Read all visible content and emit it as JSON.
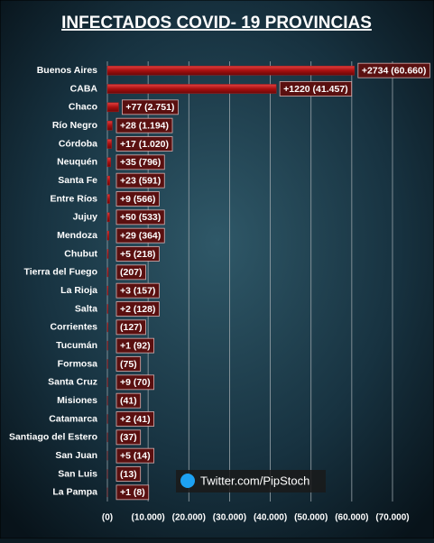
{
  "chart_data": {
    "type": "hbar",
    "title": "INFECTADOS COVID- 19  PROVINCIAS",
    "categories": [
      "Buenos Aires",
      "CABA",
      "Chaco",
      "Río Negro",
      "Córdoba",
      "Neuquén",
      "Santa Fe",
      "Entre Ríos",
      "Jujuy",
      "Mendoza",
      "Chubut",
      "Tierra del Fuego",
      "La Rioja",
      "Salta",
      "Corrientes",
      "Tucumán",
      "Formosa",
      "Santa Cruz",
      "Misiones",
      "Catamarca",
      "Santiago del Estero",
      "San Juan",
      "San Luis",
      "La Pampa"
    ],
    "values": [
      60660,
      41457,
      2751,
      1194,
      1020,
      796,
      591,
      566,
      533,
      364,
      218,
      207,
      157,
      128,
      127,
      92,
      75,
      70,
      41,
      41,
      37,
      14,
      13,
      8
    ],
    "value_labels": [
      "+2734  (60.660)",
      "+1220  (41.457)",
      "+77  (2.751)",
      "+28  (1.194)",
      "+17  (1.020)",
      "+35  (796)",
      "+23  (591)",
      "+9  (566)",
      "+50  (533)",
      "+29  (364)",
      "+5  (218)",
      "(207)",
      "+3  (157)",
      "+2  (128)",
      "(127)",
      "+1  (92)",
      "(75)",
      "+9  (70)",
      "(41)",
      "+2  (41)",
      "(37)",
      "+5  (14)",
      "(13)",
      "+1  (8)"
    ],
    "color": "#b01818",
    "xlim": [
      0,
      70000
    ],
    "xticks": [
      {
        "value": 0,
        "label": "(0)"
      },
      {
        "value": 10000,
        "label": "(10.000)"
      },
      {
        "value": 20000,
        "label": "(20.000)"
      },
      {
        "value": 30000,
        "label": "(30.000)"
      },
      {
        "value": 40000,
        "label": "(40.000)"
      },
      {
        "value": 50000,
        "label": "(50.000)"
      },
      {
        "value": 60000,
        "label": "(60.000)"
      },
      {
        "value": 70000,
        "label": "(70.000)"
      }
    ],
    "grid": true,
    "annotation": "Twitter.com/PipStoch"
  }
}
